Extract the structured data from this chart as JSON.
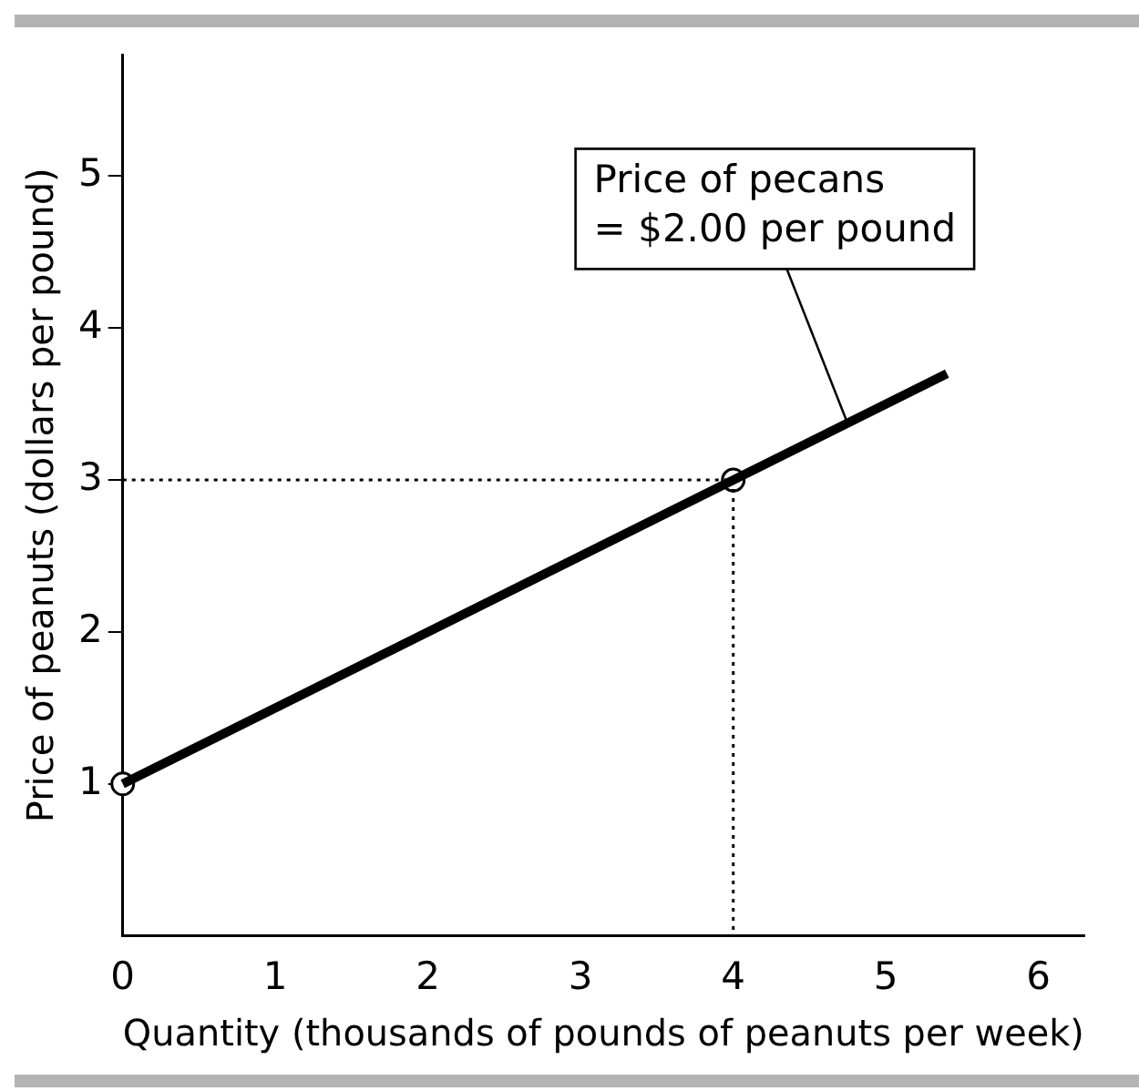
{
  "chart_data": {
    "type": "line",
    "xlabel": "Quantity (thousands of pounds of peanuts per week)",
    "ylabel": "Price of peanuts (dollars per pound)",
    "xlim": [
      0,
      6.3
    ],
    "ylim": [
      0,
      5.8
    ],
    "xticks": [
      0,
      1,
      2,
      3,
      4,
      5,
      6
    ],
    "yticks": [
      1,
      2,
      3,
      4,
      5
    ],
    "grid": false,
    "legend": false,
    "series": [
      {
        "color": "#000000",
        "x": [
          0,
          5.4
        ],
        "values": [
          1,
          3.7
        ],
        "marker": "none",
        "line_style": "solid"
      },
      {
        "color": "#000000",
        "x": [
          0,
          4
        ],
        "values": [
          3,
          3
        ],
        "marker": "none",
        "line_style": "dotted"
      },
      {
        "color": "#000000",
        "x": [
          4,
          4
        ],
        "values": [
          3,
          0
        ],
        "marker": "none",
        "line_style": "dotted"
      },
      {
        "type": "scatter",
        "color": "#000000",
        "x": [
          0,
          4
        ],
        "values": [
          1,
          3
        ],
        "marker": "circle"
      }
    ],
    "annotations": [
      {
        "text": "Price of pecans\n= $2.00 per pound",
        "x": 4.75,
        "y": 3.37
      }
    ]
  }
}
